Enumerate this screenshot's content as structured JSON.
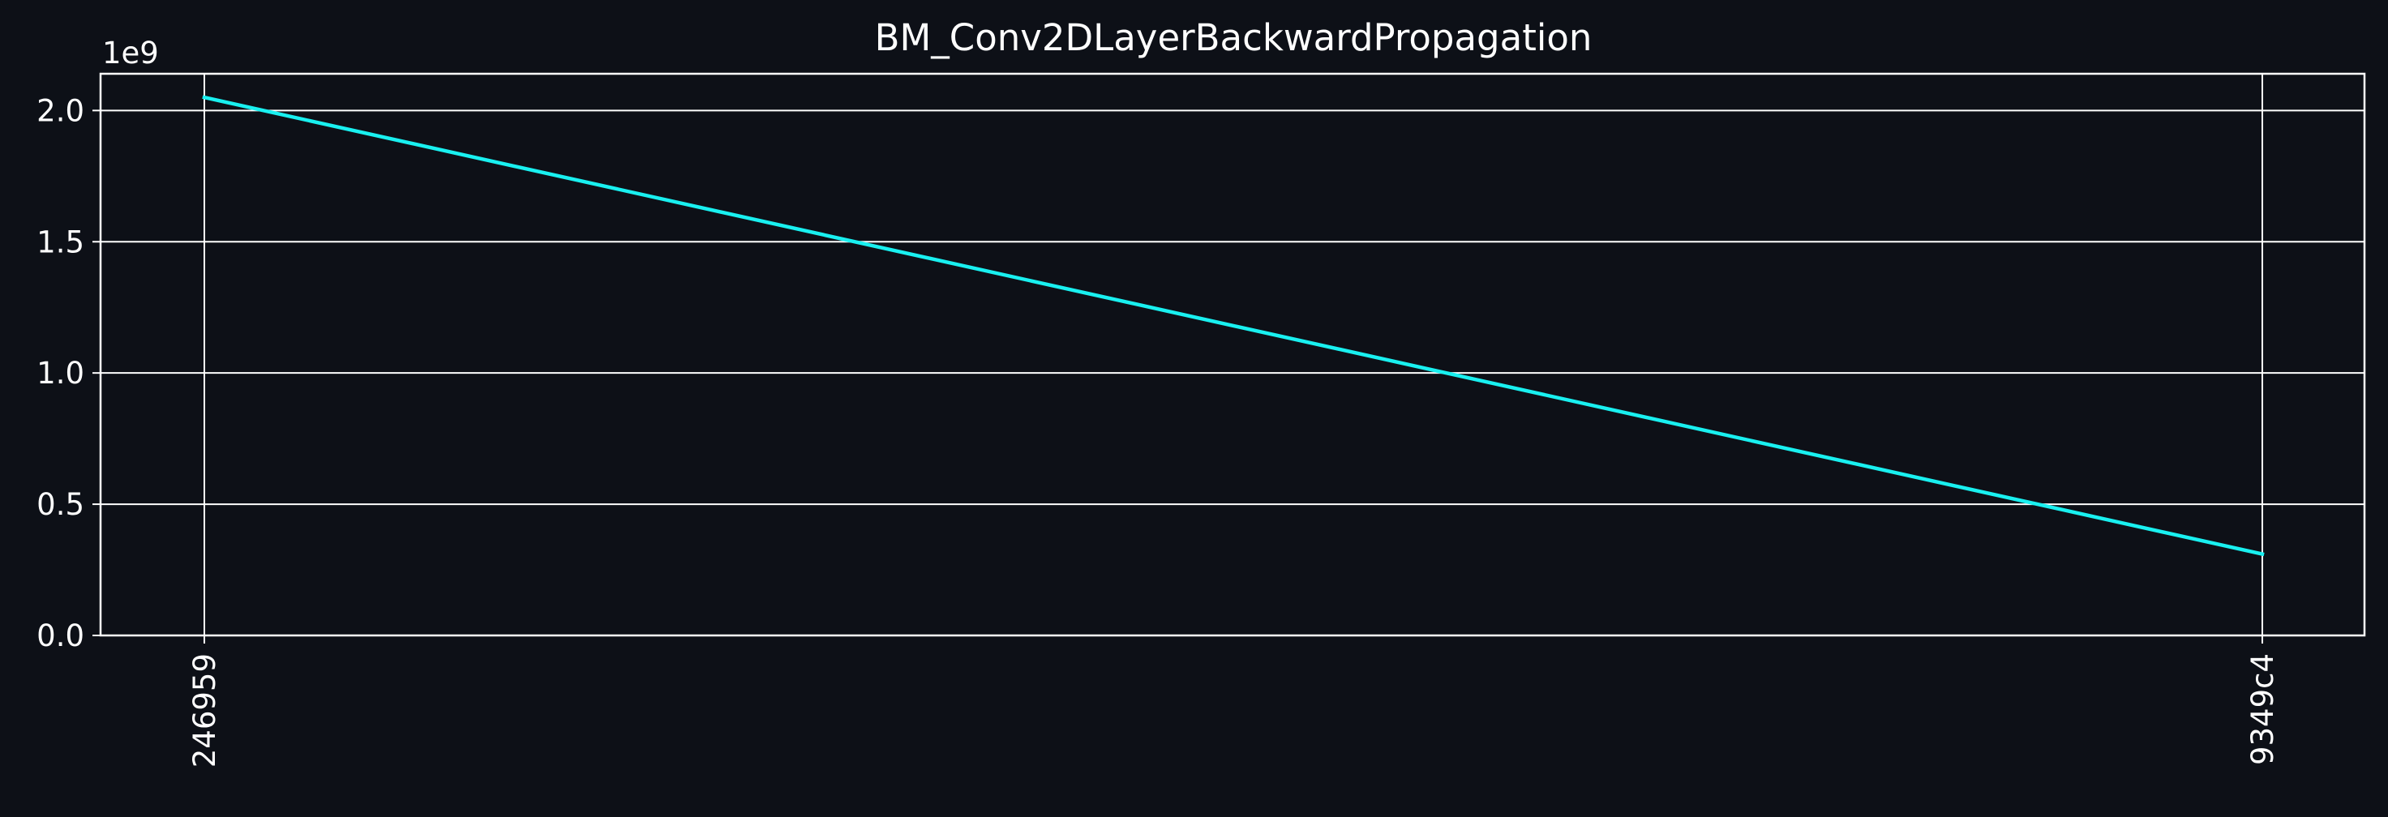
{
  "chart_data": {
    "type": "line",
    "title": "BM_Conv2DLayerBackwardPropagation",
    "xlabel": "",
    "ylabel": "",
    "categories": [
      "246959",
      "9349c4"
    ],
    "series": [
      {
        "values": [
          2050000000,
          310000000
        ]
      }
    ],
    "ylim": [
      0,
      2140000000
    ],
    "y_ticks": [
      0,
      500000000,
      1000000000,
      1500000000,
      2000000000
    ],
    "y_tick_labels": [
      "0.0",
      "0.5",
      "1.0",
      "1.5",
      "2.0"
    ],
    "y_offset_label": "1e9",
    "grid": true,
    "colors": {
      "background": "#0d1017",
      "axes": "#ffffff",
      "grid": "#ffffff",
      "series": "#19f0f0"
    }
  }
}
